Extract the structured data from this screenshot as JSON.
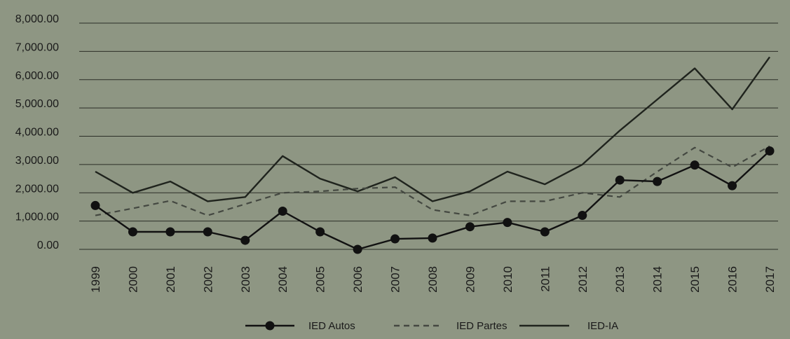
{
  "chart_data": {
    "type": "line",
    "title": "",
    "xlabel": "",
    "ylabel": "",
    "ylim": [
      0,
      8000
    ],
    "grid": true,
    "legend_position": "bottom",
    "y_ticks": [
      "0.00",
      "1,000.00",
      "2,000.00",
      "3,000.00",
      "4,000.00",
      "5,000.00",
      "6,000.00",
      "7,000.00",
      "8,000.00"
    ],
    "y_tick_values": [
      0,
      1000,
      2000,
      3000,
      4000,
      5000,
      6000,
      7000,
      8000
    ],
    "categories": [
      "1999",
      "2000",
      "2001",
      "2002",
      "2003",
      "2004",
      "2005",
      "2006",
      "2007",
      "2008",
      "2009",
      "2010",
      "2011",
      "2012",
      "2013",
      "2014",
      "2015",
      "2016",
      "2017"
    ],
    "series": [
      {
        "name": "IED Autos",
        "style": "solid-markers",
        "color": "#111111",
        "values": [
          1550,
          620,
          620,
          620,
          320,
          1350,
          620,
          0,
          370,
          400,
          800,
          950,
          620,
          1200,
          2450,
          2400,
          2980,
          2250,
          3480
        ]
      },
      {
        "name": "IED Partes",
        "style": "dashed",
        "color": "#444841",
        "values": [
          1200,
          1450,
          1720,
          1200,
          1600,
          2000,
          2050,
          2150,
          2200,
          1400,
          1200,
          1700,
          1700,
          2000,
          1850,
          2750,
          3600,
          2900,
          3650
        ]
      },
      {
        "name": "IED-IA",
        "style": "solid",
        "color": "#1f231d",
        "values": [
          2750,
          2000,
          2400,
          1700,
          1850,
          3300,
          2500,
          2050,
          2550,
          1700,
          2050,
          2750,
          2300,
          3000,
          4200,
          5300,
          6400,
          4950,
          6800
        ]
      }
    ]
  },
  "colors": {
    "background": "#8e9683",
    "grid": "#2b2e27",
    "text": "#1a1a1a"
  }
}
